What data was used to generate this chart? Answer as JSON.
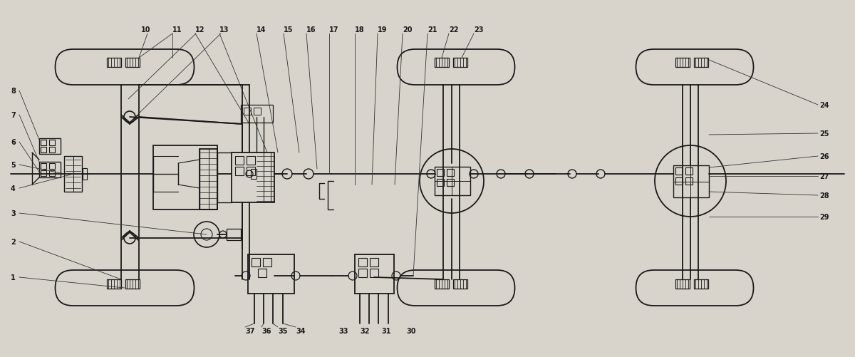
{
  "bg_color": "#d8d4cc",
  "line_color": "#1a1a1a",
  "lw": 1.3,
  "fig_width": 12.0,
  "fig_height": 5.02
}
